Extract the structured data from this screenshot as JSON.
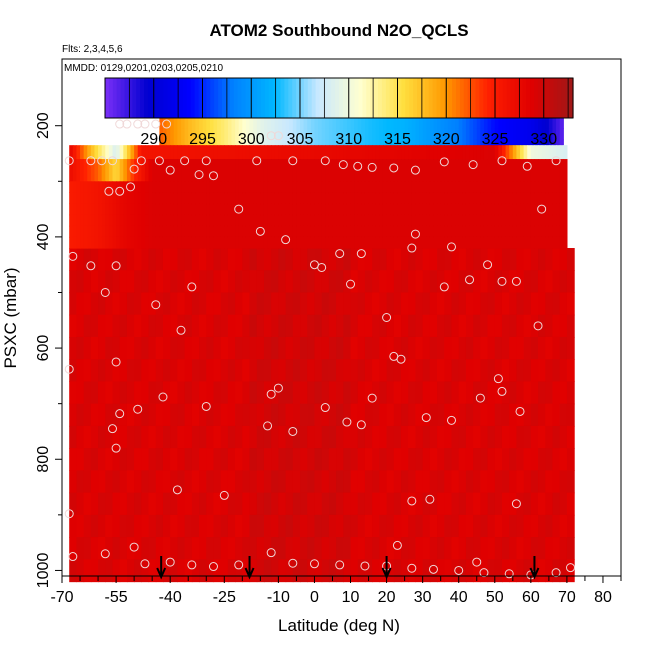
{
  "chart_data": {
    "type": "heatmap",
    "title": "ATOM2 Southbound N2O_QCLS",
    "annotations": [
      "Flts: 2,3,4,5,6",
      "MMDD: 0129,0201,0203,0205,0210"
    ],
    "xlabel": "Latitude (deg N)",
    "ylabel": "PSXC (mbar)",
    "xlim": [
      -70,
      85
    ],
    "ylim": [
      1010,
      80
    ],
    "x_ticks": [
      "-70",
      "-55",
      "-40",
      "-25",
      "-10",
      "0",
      "10",
      "20",
      "30",
      "40",
      "50",
      "60",
      "70",
      "80"
    ],
    "x_tick_values": [
      -70,
      -55,
      -40,
      -25,
      -10,
      0,
      10,
      20,
      30,
      40,
      50,
      60,
      70,
      80
    ],
    "x_minor_ticks": [
      -65,
      -60,
      -50,
      -45,
      -35,
      -30,
      -20,
      -15,
      -5,
      5,
      15,
      25,
      35,
      45,
      55,
      65,
      75,
      85
    ],
    "y_ticks": [
      "200",
      "400",
      "600",
      "800",
      "1000"
    ],
    "y_tick_values": [
      200,
      400,
      600,
      800,
      1000
    ],
    "colorbar": {
      "ticks": [
        "290",
        "295",
        "300",
        "305",
        "310",
        "315",
        "320",
        "325",
        "330"
      ],
      "tick_values": [
        290,
        295,
        300,
        305,
        310,
        315,
        320,
        325,
        330
      ],
      "range": [
        285,
        333
      ],
      "colors": [
        "#7b2ff7",
        "#0000d0",
        "#0000ff",
        "#0080ff",
        "#00b8ff",
        "#c8e8ff",
        "#ffffd0",
        "#ffe040",
        "#ff9800",
        "#ff2000",
        "#e00000",
        "#a01818"
      ]
    },
    "field": {
      "background_value": 329,
      "layers": [
        {
          "p": [
            165,
            235
          ],
          "lat": [
            -43,
            69
          ],
          "values": [
            {
              "lat": -43,
              "v": 322
            },
            {
              "lat": -35,
              "v": 318
            },
            {
              "lat": -25,
              "v": 314
            },
            {
              "lat": -15,
              "v": 309
            },
            {
              "lat": 0,
              "v": 305
            },
            {
              "lat": 15,
              "v": 303
            },
            {
              "lat": 25,
              "v": 302
            },
            {
              "lat": 40,
              "v": 298
            },
            {
              "lat": 50,
              "v": 294
            },
            {
              "lat": 60,
              "v": 292
            },
            {
              "lat": 65,
              "v": 289
            },
            {
              "lat": 69,
              "v": 286
            }
          ]
        },
        {
          "p": [
            235,
            260
          ],
          "lat": [
            -68,
            70
          ],
          "values": [
            {
              "lat": -68,
              "v": 328
            },
            {
              "lat": -62,
              "v": 318
            },
            {
              "lat": -55,
              "v": 308
            },
            {
              "lat": -48,
              "v": 326
            },
            {
              "lat": 50,
              "v": 329
            },
            {
              "lat": 55,
              "v": 320
            },
            {
              "lat": 60,
              "v": 310
            },
            {
              "lat": 70,
              "v": 308
            }
          ]
        },
        {
          "p": [
            260,
            300
          ],
          "lat": [
            -68,
            70
          ],
          "values": [
            {
              "lat": -68,
              "v": 327
            },
            {
              "lat": -60,
              "v": 322
            },
            {
              "lat": -55,
              "v": 316
            },
            {
              "lat": -50,
              "v": 324
            },
            {
              "lat": -45,
              "v": 329
            },
            {
              "lat": 70,
              "v": 329
            }
          ]
        },
        {
          "p": [
            300,
            420
          ],
          "lat": [
            -68,
            70
          ],
          "values": [
            {
              "lat": -68,
              "v": 325
            },
            {
              "lat": -60,
              "v": 326
            },
            {
              "lat": -52,
              "v": 328
            },
            {
              "lat": -45,
              "v": 329
            },
            {
              "lat": 70,
              "v": 329
            }
          ]
        }
      ]
    },
    "sample_points": [
      [
        -54,
        197
      ],
      [
        -52,
        197
      ],
      [
        -49,
        197
      ],
      [
        -47,
        197
      ],
      [
        -44,
        197
      ],
      [
        -41,
        197
      ],
      [
        -12,
        218
      ],
      [
        -10,
        218
      ],
      [
        -68,
        263
      ],
      [
        -62,
        263
      ],
      [
        -59,
        263
      ],
      [
        -56,
        263
      ],
      [
        -48,
        263
      ],
      [
        -43,
        263
      ],
      [
        -36,
        263
      ],
      [
        -30,
        263
      ],
      [
        -16,
        263
      ],
      [
        -6,
        263
      ],
      [
        -54,
        318
      ],
      [
        -57,
        318
      ],
      [
        -51,
        310
      ],
      [
        -50,
        278
      ],
      [
        -40,
        280
      ],
      [
        -32,
        288
      ],
      [
        -28,
        290
      ],
      [
        3,
        263
      ],
      [
        8,
        270
      ],
      [
        12,
        273
      ],
      [
        16,
        275
      ],
      [
        22,
        276
      ],
      [
        28,
        280
      ],
      [
        36,
        265
      ],
      [
        44,
        270
      ],
      [
        52,
        263
      ],
      [
        59,
        273
      ],
      [
        67,
        263
      ],
      [
        -15,
        390
      ],
      [
        -8,
        405
      ],
      [
        7,
        430
      ],
      [
        13,
        430
      ],
      [
        28,
        395
      ],
      [
        38,
        418
      ],
      [
        48,
        450
      ],
      [
        56,
        480
      ],
      [
        63,
        350
      ],
      [
        -67,
        435
      ],
      [
        -62,
        452
      ],
      [
        -55,
        452
      ],
      [
        -58,
        500
      ],
      [
        -44,
        522
      ],
      [
        -37,
        568
      ],
      [
        -34,
        490
      ],
      [
        -21,
        350
      ],
      [
        0,
        450
      ],
      [
        2,
        455
      ],
      [
        10,
        485
      ],
      [
        20,
        545
      ],
      [
        27,
        420
      ],
      [
        36,
        490
      ],
      [
        43,
        477
      ],
      [
        52,
        480
      ],
      [
        -55,
        625
      ],
      [
        -68,
        638
      ],
      [
        -42,
        688
      ],
      [
        -30,
        705
      ],
      [
        -12,
        683
      ],
      [
        -10,
        672
      ],
      [
        3,
        707
      ],
      [
        9,
        733
      ],
      [
        13,
        738
      ],
      [
        16,
        690
      ],
      [
        22,
        615
      ],
      [
        24,
        620
      ],
      [
        31,
        725
      ],
      [
        38,
        730
      ],
      [
        46,
        690
      ],
      [
        51,
        655
      ],
      [
        52,
        678
      ],
      [
        57,
        714
      ],
      [
        62,
        560
      ],
      [
        -54,
        718
      ],
      [
        -49,
        710
      ],
      [
        -56,
        745
      ],
      [
        -55,
        780
      ],
      [
        -68,
        898
      ],
      [
        -38,
        855
      ],
      [
        -25,
        865
      ],
      [
        -13,
        740
      ],
      [
        -6,
        750
      ],
      [
        27,
        875
      ],
      [
        32,
        872
      ],
      [
        56,
        880
      ],
      [
        -67,
        975
      ],
      [
        -58,
        970
      ],
      [
        -50,
        958
      ],
      [
        -47,
        988
      ],
      [
        -40,
        985
      ],
      [
        -34,
        990
      ],
      [
        -28,
        993
      ],
      [
        -21,
        990
      ],
      [
        -12,
        968
      ],
      [
        -6,
        987
      ],
      [
        0,
        988
      ],
      [
        7,
        990
      ],
      [
        14,
        992
      ],
      [
        20,
        992
      ],
      [
        27,
        996
      ],
      [
        33,
        998
      ],
      [
        40,
        1000
      ],
      [
        47,
        1004
      ],
      [
        54,
        1006
      ],
      [
        60,
        1008
      ],
      [
        67,
        1004
      ],
      [
        23,
        955
      ],
      [
        45,
        985
      ],
      [
        71,
        995
      ]
    ],
    "arrows_lat": [
      -42.5,
      -18,
      20,
      61
    ]
  }
}
